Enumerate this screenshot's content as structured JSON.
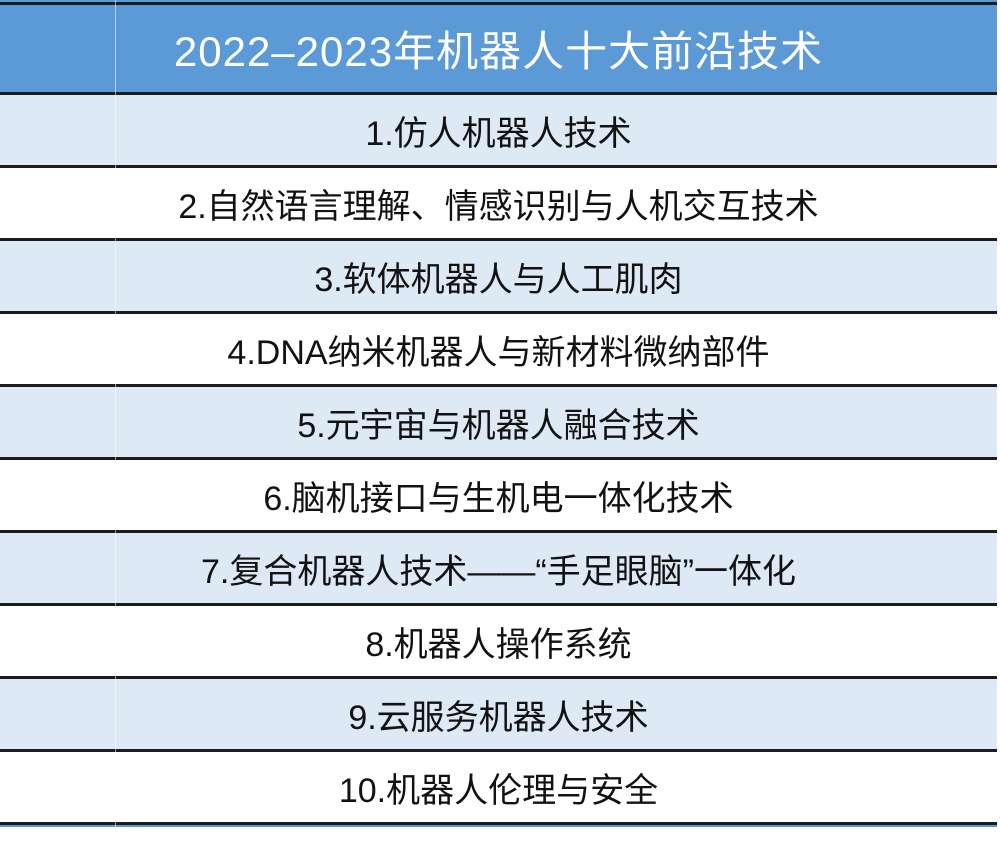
{
  "table": {
    "title": "2022–2023年机器人十大前沿技术",
    "rows": [
      "1.仿人机器人技术",
      "2.自然语言理解、情感识别与人机交互技术",
      "3.软体机器人与人工肌肉",
      "4.DNA纳米机器人与新材料微纳部件",
      "5.元宇宙与机器人融合技术",
      "6.脑机接口与生机电一体化技术",
      "7.复合机器人技术——“手足眼脑”一体化",
      "8.机器人操作系统",
      "9.云服务机器人技术",
      "10.机器人伦理与安全"
    ]
  },
  "colors": {
    "header_bg": "#5b9ad6",
    "row_alt_bg": "#dde9f5",
    "row_bg": "#ffffff",
    "border": "#1c1c1c",
    "header_text": "#ffffff",
    "row_text": "#121212"
  }
}
